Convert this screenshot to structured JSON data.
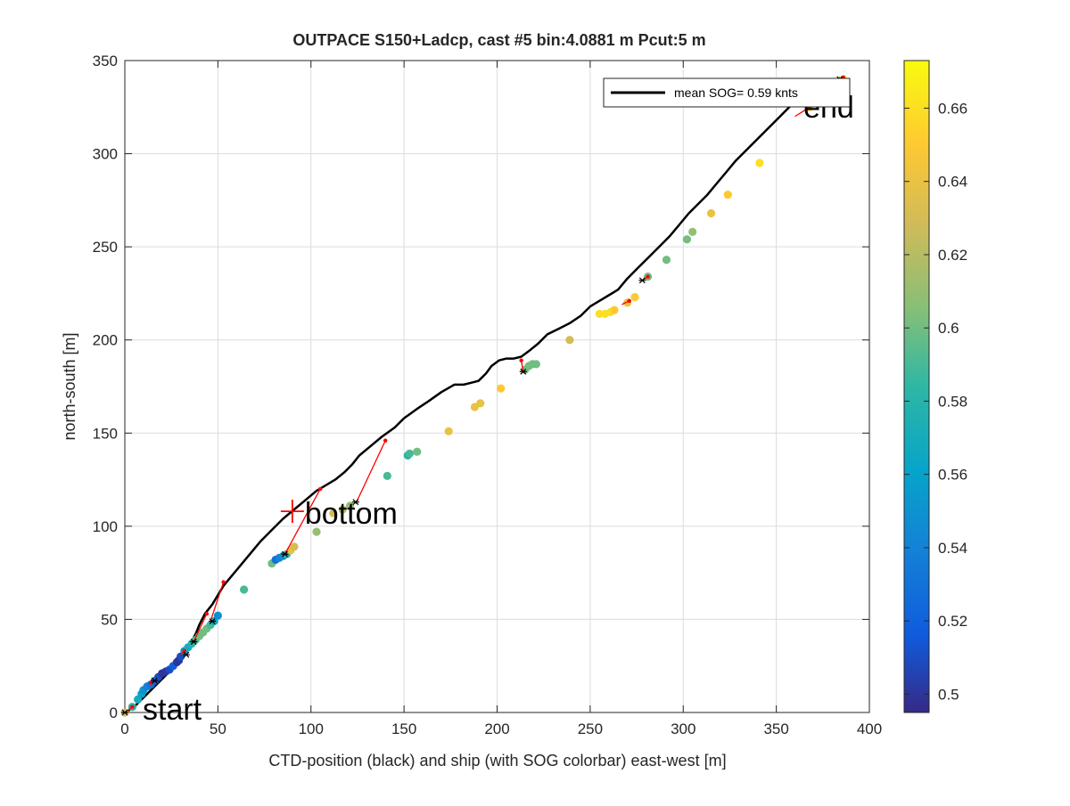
{
  "chart_data": {
    "type": "scatter",
    "title": "OUTPACE S150+Ladcp, cast #5 bin:4.0881 m  Pcut:5 m",
    "xlabel": "CTD-position (black) and ship (with SOG colorbar) east-west [m]",
    "ylabel": "north-south [m]",
    "xlim": [
      0,
      400
    ],
    "ylim": [
      0,
      350
    ],
    "xticks": [
      "0",
      "50",
      "100",
      "150",
      "200",
      "250",
      "300",
      "350",
      "400"
    ],
    "yticks": [
      "0",
      "50",
      "100",
      "150",
      "200",
      "250",
      "300",
      "350"
    ],
    "grid": true,
    "legend": {
      "label": "mean SOG=  0.59 knts",
      "placement": "top-right"
    },
    "annotations": {
      "start": {
        "text": "start",
        "x": 0,
        "y": 0
      },
      "bottom": {
        "text": "bottom",
        "x": 90,
        "y": 108
      },
      "end": {
        "text": "end",
        "x": 367,
        "y": 327
      }
    },
    "colorbar": {
      "min": 0.495,
      "max": 0.673,
      "ticks": [
        "0.5",
        "0.52",
        "0.54",
        "0.56",
        "0.58",
        "0.6",
        "0.62",
        "0.64",
        "0.66"
      ],
      "tick_values": [
        0.5,
        0.52,
        0.54,
        0.56,
        0.58,
        0.6,
        0.62,
        0.64,
        0.66
      ],
      "colormap": "parula"
    },
    "series": [
      {
        "role": "ctd-track",
        "color": "#000000",
        "x": [
          0,
          2,
          5,
          8,
          12,
          16,
          20,
          24,
          28,
          31,
          35,
          38,
          40,
          43,
          47,
          50,
          53,
          58,
          63,
          68,
          73,
          79,
          85,
          91,
          97,
          103,
          108,
          113,
          118,
          122,
          126,
          132,
          138,
          145,
          150,
          157,
          163,
          170,
          177,
          182,
          186,
          190,
          194,
          197,
          201,
          205,
          209,
          213,
          217,
          222,
          227,
          233,
          239,
          245,
          250,
          255,
          260,
          265,
          270,
          276,
          282,
          288,
          293,
          298,
          303,
          308,
          313,
          318,
          323,
          328,
          334,
          340,
          346,
          352,
          357,
          362,
          367,
          372,
          377,
          381,
          385
        ],
        "y": [
          0,
          1,
          3,
          6,
          10,
          14,
          18,
          22,
          27,
          32,
          37,
          42,
          47,
          53,
          58,
          63,
          68,
          74,
          80,
          86,
          92,
          98,
          104,
          109,
          114,
          119,
          122,
          125,
          129,
          133,
          138,
          143,
          148,
          153,
          158,
          163,
          167,
          172,
          176,
          176,
          177,
          178,
          182,
          186,
          189,
          190,
          190,
          191,
          194,
          198,
          203,
          206,
          209,
          213,
          218,
          221,
          224,
          227,
          233,
          239,
          245,
          251,
          256,
          262,
          268,
          273,
          278,
          284,
          290,
          296,
          302,
          308,
          314,
          320,
          325,
          330,
          333,
          336,
          338,
          339,
          341
        ]
      },
      {
        "role": "ship-sog",
        "x": [
          0,
          4,
          7,
          9,
          10,
          12,
          14,
          16,
          18,
          20,
          22,
          24,
          26,
          28,
          29,
          30,
          32,
          34,
          36,
          38,
          40,
          42,
          44,
          46,
          48,
          50,
          64,
          79,
          81,
          83,
          85,
          87,
          89,
          91,
          103,
          112,
          117,
          121,
          141,
          152,
          153,
          157,
          174,
          188,
          191,
          202,
          215,
          217,
          219,
          221,
          239,
          255,
          258,
          261,
          263,
          270,
          274,
          281,
          291,
          302,
          305,
          315,
          324,
          341,
          368,
          386
        ],
        "y": [
          0,
          3,
          7,
          10,
          12,
          14,
          15,
          17,
          19,
          21,
          22,
          23,
          25,
          27,
          28,
          30,
          33,
          35,
          37,
          39,
          41,
          43,
          45,
          47,
          49,
          52,
          66,
          80,
          82,
          83,
          84,
          85,
          87,
          89,
          97,
          107,
          109,
          111,
          127,
          138,
          139,
          140,
          151,
          164,
          166,
          174,
          184,
          186,
          187,
          187,
          200,
          214,
          214,
          215,
          216,
          220,
          223,
          234,
          243,
          254,
          258,
          268,
          278,
          295,
          325,
          340
        ],
        "sog": [
          0.63,
          0.58,
          0.57,
          0.56,
          0.55,
          0.54,
          0.53,
          0.52,
          0.51,
          0.5,
          0.5,
          0.51,
          0.52,
          0.5,
          0.5,
          0.51,
          0.55,
          0.57,
          0.58,
          0.59,
          0.6,
          0.6,
          0.6,
          0.59,
          0.57,
          0.55,
          0.59,
          0.6,
          0.53,
          0.54,
          0.55,
          0.58,
          0.64,
          0.63,
          0.61,
          0.63,
          0.62,
          0.61,
          0.59,
          0.58,
          0.59,
          0.6,
          0.64,
          0.64,
          0.64,
          0.65,
          0.6,
          0.6,
          0.6,
          0.6,
          0.63,
          0.66,
          0.66,
          0.66,
          0.65,
          0.64,
          0.65,
          0.6,
          0.6,
          0.6,
          0.61,
          0.64,
          0.65,
          0.66,
          0.66,
          0.67
        ]
      },
      {
        "role": "connectors",
        "color": "#ff0000",
        "segments": [
          [
            [
              0,
              0
            ],
            [
              4,
              3
            ]
          ],
          [
            [
              16,
              17
            ],
            [
              14,
              16
            ]
          ],
          [
            [
              30,
              31
            ],
            [
              32,
              33
            ]
          ],
          [
            [
              37,
              38
            ],
            [
              44,
              53
            ]
          ],
          [
            [
              46,
              49
            ],
            [
              53,
              70
            ]
          ],
          [
            [
              86,
              85
            ],
            [
              105,
              120
            ]
          ],
          [
            [
              124,
              112
            ],
            [
              140,
              146
            ]
          ],
          [
            [
              214,
              183
            ],
            [
              213,
              189
            ]
          ],
          [
            [
              267,
              219
            ],
            [
              271,
              221
            ]
          ],
          [
            [
              278,
              232
            ],
            [
              281,
              234
            ]
          ],
          [
            [
              360,
              320
            ],
            [
              368,
              325
            ]
          ],
          [
            [
              384,
              340
            ],
            [
              386,
              341
            ]
          ]
        ]
      },
      {
        "role": "ctd-markers",
        "color": "#000000",
        "x": [
          0,
          16,
          33,
          37,
          47,
          86,
          124,
          214,
          278,
          384
        ],
        "y": [
          0,
          17,
          31,
          38,
          49,
          85,
          113,
          183,
          232,
          340
        ]
      }
    ]
  }
}
